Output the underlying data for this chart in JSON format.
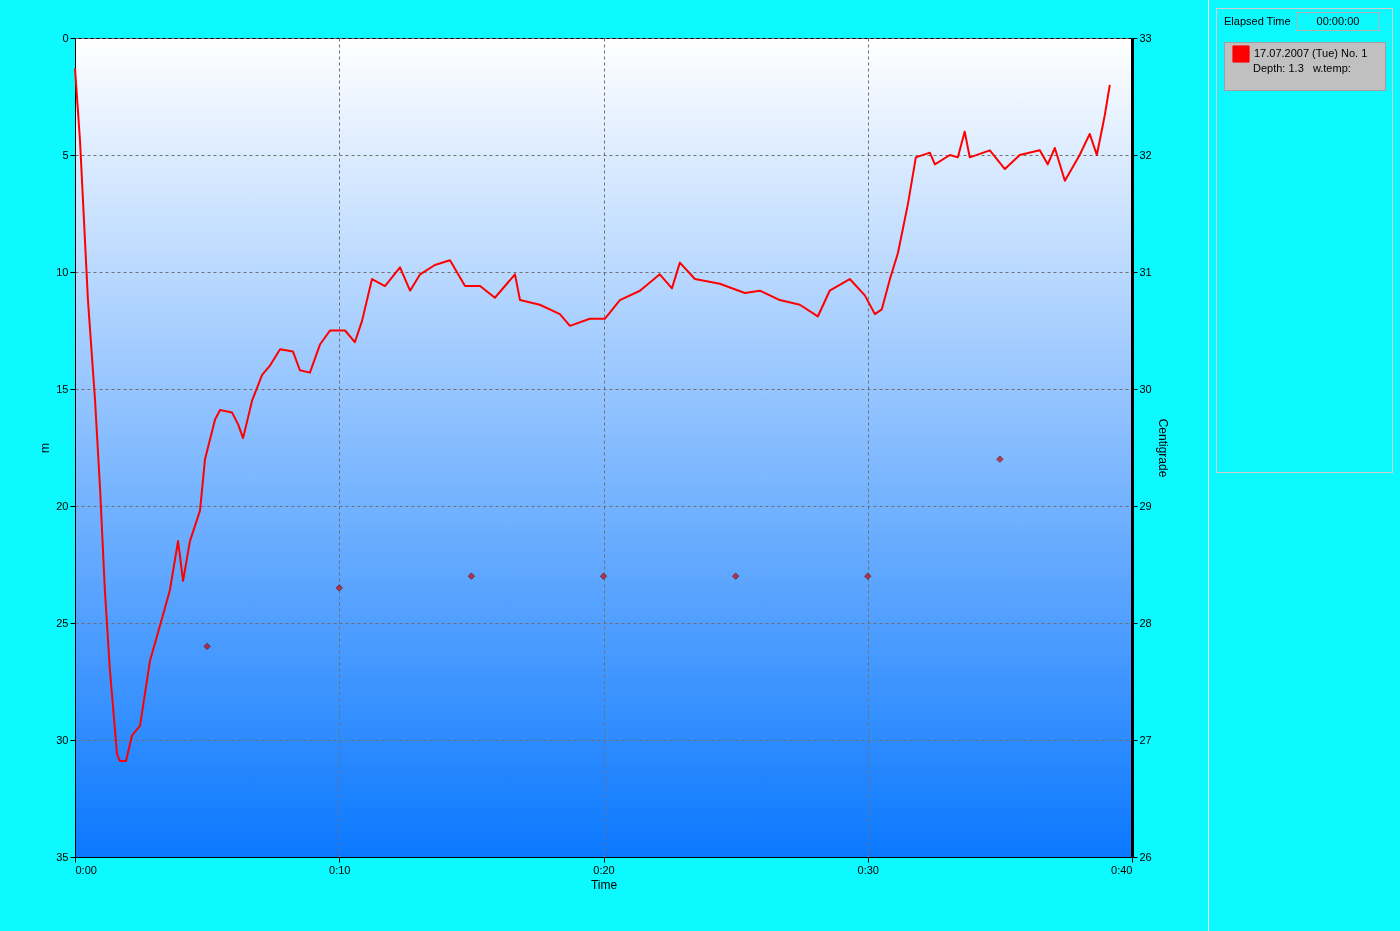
{
  "chart_data": {
    "type": "line",
    "xlabel": "Time",
    "ylabel": "m",
    "y2label": "Centigrade",
    "xlim": [
      0,
      40
    ],
    "xticks": [
      {
        "value": 0,
        "label": "0:00"
      },
      {
        "value": 10,
        "label": "0:10"
      },
      {
        "value": 20,
        "label": "0:20"
      },
      {
        "value": 30,
        "label": "0:30"
      },
      {
        "value": 40,
        "label": "0:40"
      }
    ],
    "ylim": [
      35,
      0
    ],
    "yticks": [
      0,
      5,
      10,
      15,
      20,
      25,
      30,
      35
    ],
    "y2lim": [
      26,
      33
    ],
    "y2ticks": [
      26,
      27,
      28,
      29,
      30,
      31,
      32,
      33
    ],
    "grid": true,
    "legend": "right",
    "annotations": [
      "Elapsed Time",
      "00:00:00",
      "Depth: 1.3",
      "w.temp:"
    ],
    "series": [
      {
        "name": "17.07.2007 (Tue)    No. 1",
        "color": "#ff0000",
        "line_style": "solid",
        "x": [
          0,
          0.19,
          0.49,
          0.76,
          0.95,
          1.13,
          1.32,
          1.59,
          1.7,
          1.93,
          2.16,
          2.46,
          2.84,
          3.22,
          3.59,
          3.9,
          4.09,
          4.35,
          4.73,
          4.92,
          5.3,
          5.49,
          5.94,
          6.17,
          6.36,
          6.7,
          7.08,
          7.38,
          7.76,
          8.25,
          8.51,
          8.89,
          9.27,
          9.65,
          10.22,
          10.59,
          10.86,
          11.24,
          11.73,
          12.3,
          12.68,
          13.06,
          13.62,
          14.19,
          14.76,
          15.33,
          15.89,
          16.65,
          16.84,
          17.59,
          18.35,
          18.73,
          19.48,
          20.05,
          20.62,
          21.38,
          22.13,
          22.59,
          22.89,
          23.46,
          24.4,
          25.35,
          25.92,
          26.67,
          27.43,
          28.11,
          28.56,
          29.32,
          29.89,
          30.27,
          30.53,
          30.84,
          31.14,
          31.52,
          31.82,
          32.35,
          32.54,
          33.11,
          33.41,
          33.67,
          33.86,
          34.62,
          35.19,
          35.75,
          36.51,
          36.81,
          37.08,
          37.46,
          38.02,
          38.4,
          38.67,
          38.97,
          39.16
        ],
        "values": [
          1.3,
          4.4,
          11.2,
          15.5,
          19.3,
          23.6,
          27.0,
          30.6,
          30.9,
          30.9,
          29.8,
          29.4,
          26.6,
          25.1,
          23.6,
          21.5,
          23.2,
          21.5,
          20.2,
          18.0,
          16.3,
          15.9,
          16.0,
          16.5,
          17.1,
          15.5,
          14.4,
          14.0,
          13.3,
          13.4,
          14.2,
          14.3,
          13.1,
          12.5,
          12.5,
          13.0,
          12.1,
          10.3,
          10.6,
          9.8,
          10.8,
          10.1,
          9.7,
          9.5,
          10.6,
          10.6,
          11.1,
          10.1,
          11.2,
          11.4,
          11.8,
          12.3,
          12.0,
          12.0,
          11.2,
          10.8,
          10.1,
          10.7,
          9.6,
          10.3,
          10.5,
          10.9,
          10.8,
          11.2,
          11.4,
          11.9,
          10.8,
          10.3,
          11.0,
          11.8,
          11.6,
          10.3,
          9.2,
          7.1,
          5.1,
          4.9,
          5.4,
          5.0,
          5.1,
          4.0,
          5.1,
          4.8,
          5.6,
          5.0,
          4.8,
          5.4,
          4.7,
          6.1,
          5.0,
          4.1,
          5.0,
          3.3,
          2.0
        ]
      },
      {
        "type": "scatter",
        "axis": "y2",
        "color": "#e00000",
        "marker": "diamond",
        "x": [
          5,
          10,
          15,
          20,
          25,
          30,
          35
        ],
        "values": [
          27.8,
          28.3,
          28.4,
          28.4,
          28.4,
          28.4,
          29.4
        ]
      }
    ]
  }
}
